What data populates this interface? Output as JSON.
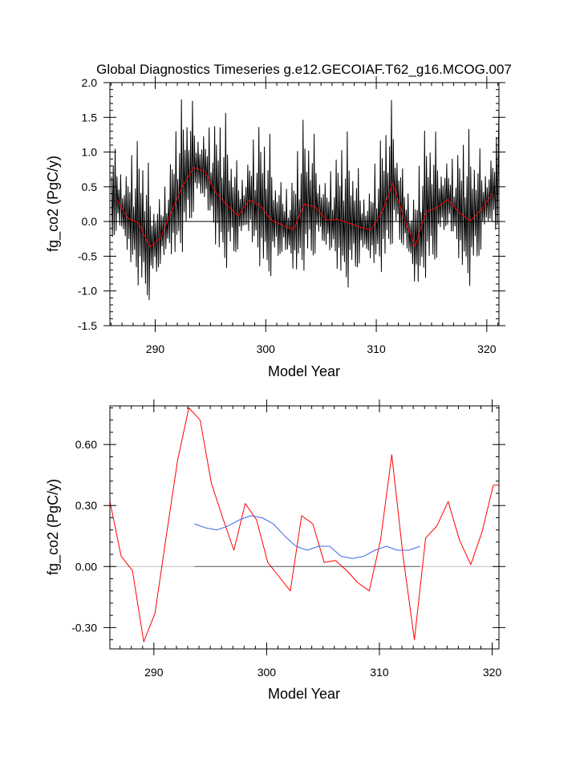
{
  "chart_data": [
    {
      "type": "line",
      "title": "Global Diagnostics Timeseries g.e12.GECOIAF.T62_g16.MCOG.007",
      "xlabel": "Model Year",
      "ylabel": "fg_co2 (PgC/y)",
      "xlim": [
        285.9,
        321.1
      ],
      "ylim": [
        -1.5,
        2.0
      ],
      "xticks": [
        290,
        300,
        310,
        320
      ],
      "xtick_labels": [
        "290",
        "300",
        "310",
        "320"
      ],
      "yticks": [
        -1.5,
        -1.0,
        -0.5,
        0.0,
        0.5,
        1.0,
        1.5,
        2.0
      ],
      "ytick_labels": [
        "-1.5",
        "-1.0",
        "-0.5",
        "0.0",
        "0.5",
        "1.0",
        "1.5",
        "2.0"
      ],
      "zero_line": true,
      "series": [
        {
          "color": "#000000",
          "monthly_anomaly_from_annual": [
            0.25,
            -0.45,
            0.45,
            -0.55,
            0.9,
            -0.65,
            0.55,
            -0.3,
            0.35,
            -0.5,
            0.7,
            -0.35
          ],
          "end_values": [
            1.62
          ]
        },
        {
          "color": "#ff0000",
          "x": [
            286.5,
            287.5,
            288.5,
            289.5,
            290.5,
            291.5,
            292.5,
            293.5,
            294.5,
            295.5,
            296.5,
            297.5,
            298.5,
            299.5,
            300.5,
            301.5,
            302.5,
            303.5,
            304.5,
            305.5,
            306.5,
            307.5,
            308.5,
            309.5,
            310.5,
            311.5,
            312.5,
            313.5,
            314.5,
            315.5,
            316.5,
            317.5,
            318.5,
            319.5,
            320.5
          ],
          "values": [
            0.32,
            0.05,
            -0.02,
            -0.37,
            -0.23,
            0.15,
            0.52,
            0.78,
            0.72,
            0.41,
            0.24,
            0.08,
            0.31,
            0.23,
            0.02,
            -0.05,
            -0.12,
            0.25,
            0.21,
            0.02,
            0.03,
            -0.02,
            -0.08,
            -0.12,
            0.13,
            0.55,
            0.05,
            -0.36,
            0.14,
            0.2,
            0.32,
            0.13,
            0.01,
            0.17,
            0.4
          ]
        }
      ]
    },
    {
      "type": "line",
      "title": "",
      "xlabel": "Model Year",
      "ylabel": "fg_co2 (PgC/y)",
      "xlim": [
        286.1,
        320.6
      ],
      "ylim": [
        -0.405,
        0.79
      ],
      "xticks": [
        290,
        300,
        310,
        320
      ],
      "xtick_labels": [
        "290",
        "300",
        "310",
        "320"
      ],
      "yticks": [
        -0.3,
        0.0,
        0.3,
        0.6
      ],
      "ytick_labels": [
        "-0.30",
        "0.00",
        "0.30",
        "0.60"
      ],
      "zero_line": true,
      "series": [
        {
          "color": "#ff0000",
          "x": [
            286.1,
            287.1,
            288.1,
            289.1,
            290.1,
            291.1,
            292.1,
            293.1,
            294.1,
            295.1,
            296.1,
            297.1,
            298.1,
            299.1,
            300.1,
            301.1,
            302.1,
            303.1,
            304.1,
            305.1,
            306.1,
            307.1,
            308.1,
            309.1,
            310.1,
            311.1,
            312.1,
            313.1,
            314.1,
            315.1,
            316.1,
            317.1,
            318.1,
            319.1,
            320.1,
            320.6
          ],
          "values": [
            0.32,
            0.05,
            -0.02,
            -0.37,
            -0.23,
            0.15,
            0.52,
            0.78,
            0.72,
            0.41,
            0.24,
            0.08,
            0.31,
            0.23,
            0.02,
            -0.05,
            -0.12,
            0.25,
            0.21,
            0.02,
            0.03,
            -0.02,
            -0.08,
            -0.12,
            0.13,
            0.55,
            0.05,
            -0.36,
            0.14,
            0.2,
            0.32,
            0.13,
            0.01,
            0.17,
            0.4,
            0.4
          ]
        },
        {
          "color": "#4169e1",
          "x": [
            293.6,
            294.6,
            295.6,
            296.6,
            297.6,
            298.6,
            299.6,
            300.6,
            301.6,
            302.6,
            303.6,
            304.6,
            305.6,
            306.6,
            307.6,
            308.6,
            309.6,
            310.6,
            311.6,
            312.6,
            313.6
          ],
          "values": [
            0.21,
            0.19,
            0.18,
            0.2,
            0.23,
            0.25,
            0.24,
            0.21,
            0.15,
            0.1,
            0.08,
            0.1,
            0.1,
            0.05,
            0.04,
            0.05,
            0.08,
            0.1,
            0.08,
            0.08,
            0.1
          ]
        }
      ]
    }
  ]
}
